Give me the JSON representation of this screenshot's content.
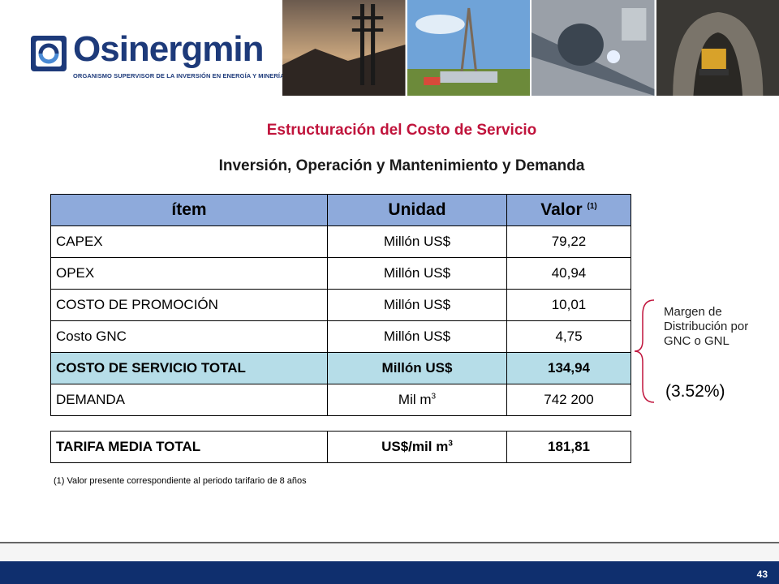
{
  "header": {
    "logo_word": "Osinergmin",
    "logo_tagline": "ORGANISMO SUPERVISOR DE LA INVERSIÓN EN ENERGÍA Y MINERÍA",
    "photos": [
      "power-lines-photo",
      "drilling-rig-photo",
      "pipeline-welding-photo",
      "mine-tunnel-photo"
    ]
  },
  "title": "Estructuración del Costo de Servicio",
  "subtitle": "Inversión, Operación y Mantenimiento y Demanda",
  "table": {
    "headers": {
      "item": "ítem",
      "unidad": "Unidad",
      "valor": "Valor",
      "valor_sup": "(1)"
    },
    "rows": [
      {
        "item": "CAPEX",
        "unidad": "Millón US$",
        "valor": "79,22"
      },
      {
        "item": "OPEX",
        "unidad": "Millón US$",
        "valor": "40,94"
      },
      {
        "item": "COSTO DE PROMOCIÓN",
        "unidad": "Millón US$",
        "valor": "10,01"
      },
      {
        "item": "Costo GNC",
        "unidad": "Millón US$",
        "valor": "4,75"
      },
      {
        "item": "COSTO DE SERVICIO TOTAL",
        "unidad": "Millón US$",
        "valor": "134,94"
      },
      {
        "item": "DEMANDA",
        "unidad": "Mil m",
        "unidad_sup": "3",
        "valor": "742 200"
      }
    ]
  },
  "tarifa": {
    "item": "TARIFA MEDIA TOTAL",
    "unidad": "US$/mil m",
    "unidad_sup": "3",
    "valor": "181,81"
  },
  "footnote": "(1) Valor presente correspondiente al periodo tarifario de 8 años",
  "side_note": {
    "text": "Margen de Distribución por GNC o GNL",
    "percent": "(3.52%)"
  },
  "page_number": "43",
  "colors": {
    "title": "#c0143c",
    "header_fill": "#8eaadb",
    "total_fill": "#b6dde8",
    "brand": "#1d3a7a",
    "footer": "#0f2f6e"
  }
}
